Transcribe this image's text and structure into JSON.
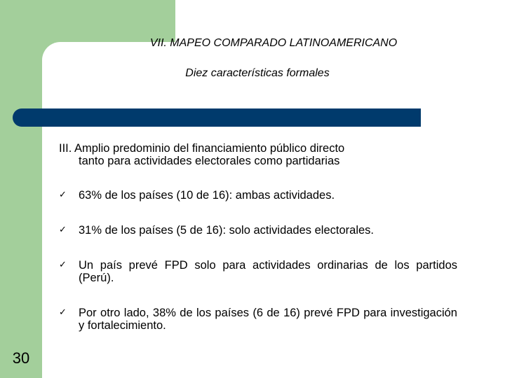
{
  "slide": {
    "title": "VII. MAPEO COMPARADO LATINOAMERICANO",
    "subtitle": "Diez características formales",
    "heading_line1": "III. Amplio predominio del financiamiento  público directo",
    "heading_line2": "tanto para actividades electorales como partidarias",
    "bullets": [
      {
        "text": "63% de los países (10 de 16): ambas actividades."
      },
      {
        "text": "31% de los países (5 de 16): solo actividades electorales."
      },
      {
        "text": "Un país prevé FPD solo para actividades ordinarias de los partidos (Perú)."
      },
      {
        "text": "Por otro lado, 38% de los países (6 de 16) prevé FPD para investigación y fortalecimiento."
      }
    ],
    "bullet_marker": "✓",
    "page_number": "30"
  },
  "colors": {
    "green_band": "#a3cf9b",
    "blue_bar": "#003a6c"
  }
}
